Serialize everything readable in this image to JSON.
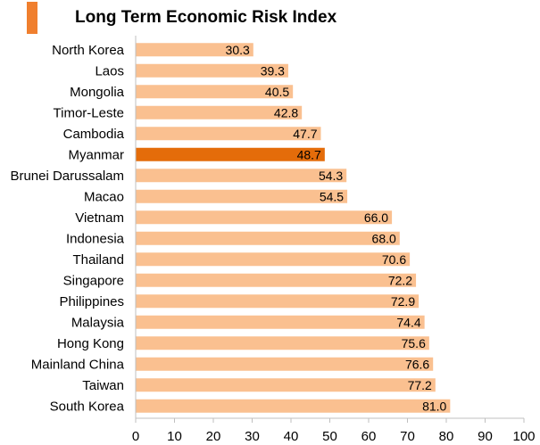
{
  "colors": {
    "bar": "#fac090",
    "highlight": "#e46c0a",
    "accent": "#f07f2e",
    "axis": "#bfbfbf"
  },
  "chart_data": {
    "type": "bar",
    "orientation": "horizontal",
    "title": "Long Term Economic Risk Index",
    "categories": [
      "North Korea",
      "Laos",
      "Mongolia",
      "Timor-Leste",
      "Cambodia",
      "Myanmar",
      "Brunei Darussalam",
      "Macao",
      "Vietnam",
      "Indonesia",
      "Thailand",
      "Singapore",
      "Philippines",
      "Malaysia",
      "Hong Kong",
      "Mainland China",
      "Taiwan",
      "South Korea"
    ],
    "values": [
      30.3,
      39.3,
      40.5,
      42.8,
      47.7,
      48.7,
      54.3,
      54.5,
      66.0,
      68.0,
      70.6,
      72.2,
      72.9,
      74.4,
      75.6,
      76.6,
      77.2,
      81.0
    ],
    "value_labels": [
      "30.3",
      "39.3",
      "40.5",
      "42.8",
      "47.7",
      "48.7",
      "54.3",
      "54.5",
      "66.0",
      "68.0",
      "70.6",
      "72.2",
      "72.9",
      "74.4",
      "75.6",
      "76.6",
      "77.2",
      "81.0"
    ],
    "highlight_category": "Myanmar",
    "xlim": [
      0,
      100
    ],
    "xticks": [
      "0",
      "10",
      "20",
      "30",
      "40",
      "50",
      "60",
      "70",
      "80",
      "90",
      "100"
    ],
    "xlabel": "",
    "ylabel": "",
    "grid": false,
    "legend": "none"
  }
}
